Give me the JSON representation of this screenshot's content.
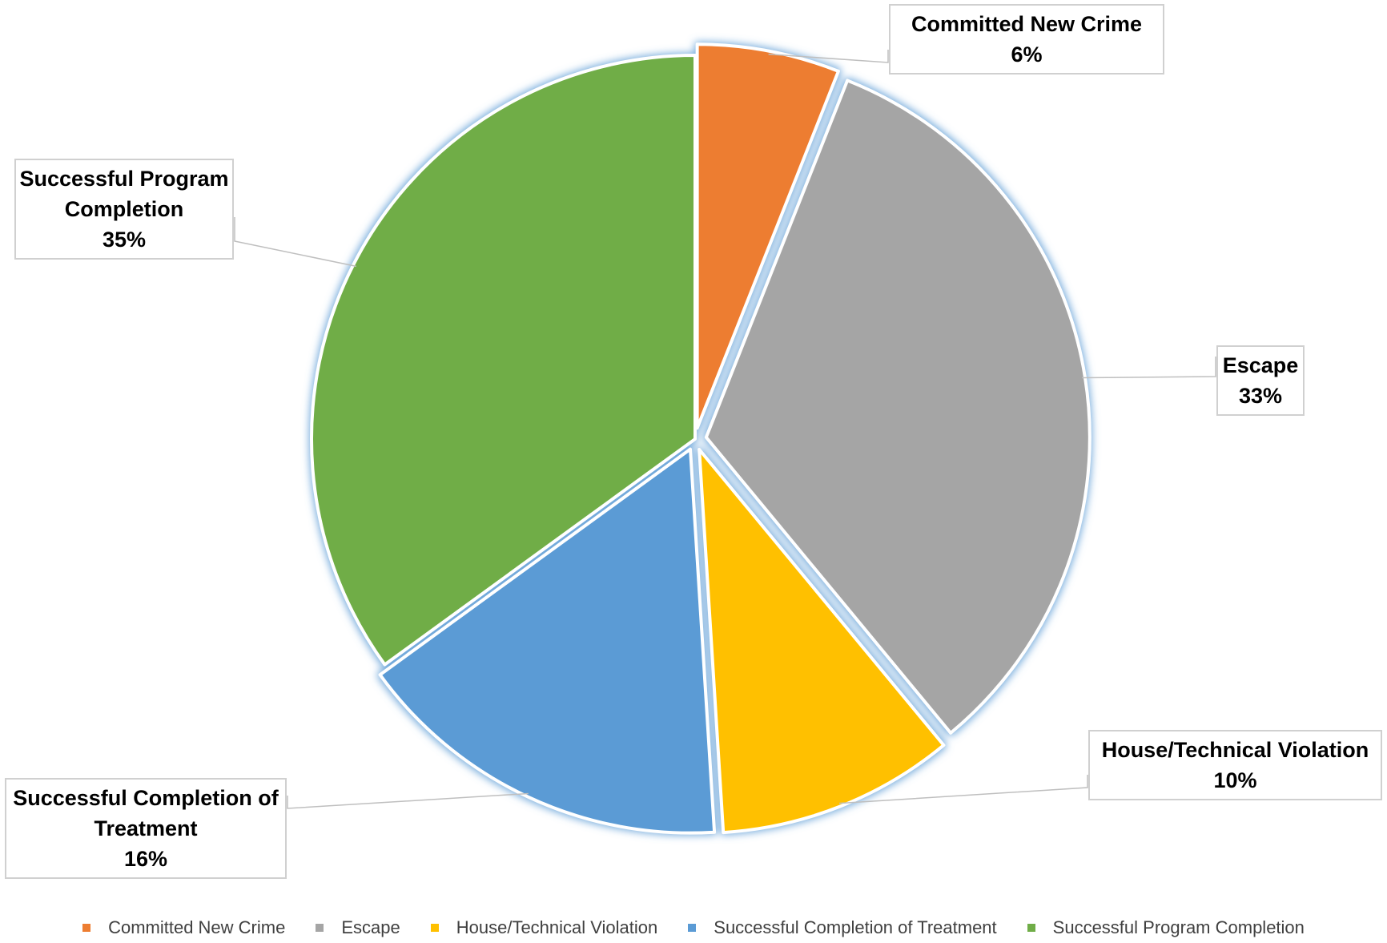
{
  "chart_data": {
    "type": "pie",
    "categories": [
      "Committed New Crime",
      "Escape",
      "House/Technical Violation",
      "Successful Completion of Treatment",
      "Successful Program Completion"
    ],
    "values": [
      6,
      33,
      10,
      16,
      35
    ],
    "value_labels": [
      "6%",
      "33%",
      "10%",
      "16%",
      "35%"
    ],
    "colors": [
      "#ED7D31",
      "#A5A5A5",
      "#FFC000",
      "#5B9BD5",
      "#70AD47"
    ],
    "exploded": [
      true,
      true,
      true,
      true,
      false
    ],
    "start_angle": "12 o'clock, clockwise",
    "legend_position": "bottom",
    "title": ""
  },
  "callouts": [
    {
      "lines": [
        "Committed New Crime"
      ],
      "value": "6%"
    },
    {
      "lines": [
        "Escape"
      ],
      "value": "33%"
    },
    {
      "lines": [
        "House/Technical Violation"
      ],
      "value": "10%"
    },
    {
      "lines": [
        "Successful Completion of",
        "Treatment"
      ],
      "value": "16%"
    },
    {
      "lines": [
        "Successful Program",
        "Completion"
      ],
      "value": "35%"
    }
  ],
  "legend": {
    "items": [
      "Committed New Crime",
      "Escape",
      "House/Technical Violation",
      "Successful Completion of Treatment",
      "Successful Program Completion"
    ]
  }
}
